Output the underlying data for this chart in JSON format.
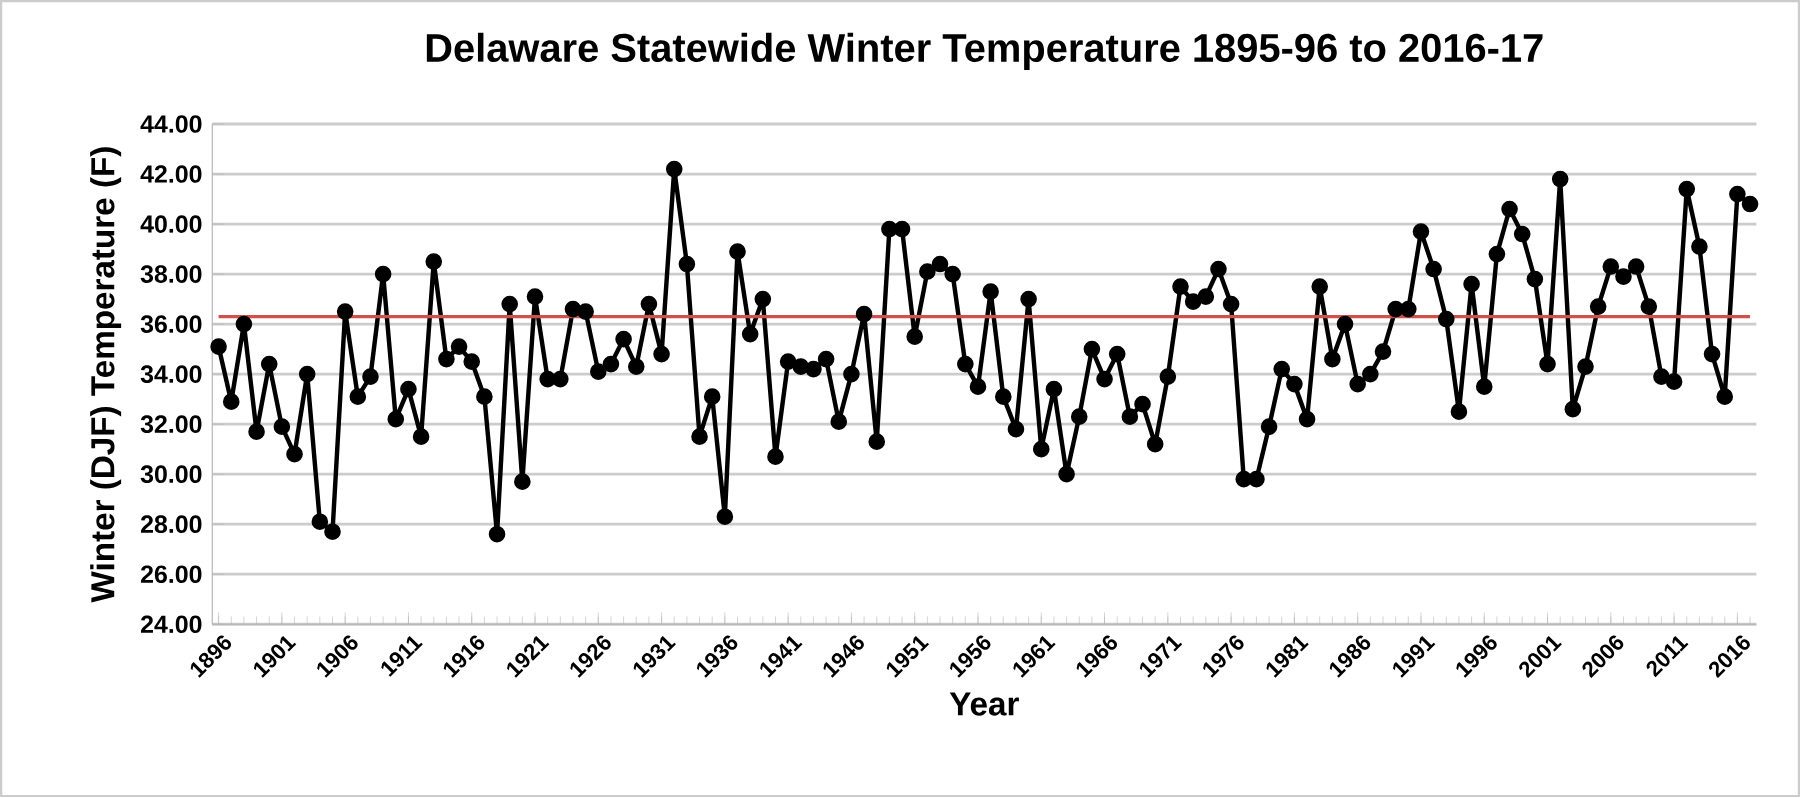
{
  "chart_data": {
    "type": "line",
    "title": "Delaware Statewide Winter Temperature 1895-96  to 2016-17",
    "xlabel": "Year",
    "ylabel": "Winter (DJF) Temperature (F)",
    "categories": [
      "1896",
      null,
      null,
      null,
      null,
      "1901",
      null,
      null,
      null,
      null,
      "1906",
      null,
      null,
      null,
      null,
      "1911",
      null,
      null,
      null,
      null,
      "1916",
      null,
      null,
      null,
      null,
      "1921",
      null,
      null,
      null,
      null,
      "1926",
      null,
      null,
      null,
      null,
      "1931",
      null,
      null,
      null,
      null,
      "1936",
      null,
      null,
      null,
      null,
      "1941",
      null,
      null,
      null,
      null,
      "1946",
      null,
      null,
      null,
      null,
      "1951",
      null,
      null,
      null,
      null,
      "1956",
      null,
      null,
      null,
      null,
      "1961",
      null,
      null,
      null,
      null,
      "1966",
      null,
      null,
      null,
      null,
      "1971",
      null,
      null,
      null,
      null,
      "1976",
      null,
      null,
      null,
      null,
      "1981",
      null,
      null,
      null,
      null,
      "1986",
      null,
      null,
      null,
      null,
      "1991",
      null,
      null,
      null,
      null,
      "1996",
      null,
      null,
      null,
      null,
      "2001",
      null,
      null,
      null,
      null,
      "2006",
      null,
      null,
      null,
      null,
      "2011",
      null,
      null,
      null,
      null,
      "2016",
      null
    ],
    "series": [
      {
        "color": "#000000",
        "values": [
          35.1,
          32.9,
          36.0,
          31.7,
          34.4,
          31.9,
          30.8,
          34.0,
          28.1,
          27.7,
          36.5,
          33.1,
          33.9,
          38.0,
          32.2,
          33.4,
          31.5,
          38.5,
          34.6,
          35.1,
          34.5,
          33.1,
          27.6,
          36.8,
          29.7,
          37.1,
          33.8,
          33.8,
          36.6,
          36.5,
          34.1,
          34.4,
          35.4,
          34.3,
          36.8,
          34.8,
          42.2,
          38.4,
          31.5,
          33.1,
          28.3,
          38.9,
          35.6,
          37.0,
          30.7,
          34.5,
          34.3,
          34.2,
          34.6,
          32.1,
          34.0,
          36.4,
          31.3,
          39.8,
          39.8,
          35.5,
          38.1,
          38.4,
          38.0,
          34.4,
          33.5,
          37.3,
          33.1,
          31.8,
          37.0,
          31.0,
          33.4,
          30.0,
          32.3,
          35.0,
          33.8,
          34.8,
          32.3,
          32.8,
          31.2,
          33.9,
          37.5,
          36.9,
          37.1,
          38.2,
          36.8,
          29.8,
          29.8,
          31.9,
          34.2,
          33.6,
          32.2,
          37.5,
          34.6,
          36.0,
          33.6,
          34.0,
          34.9,
          36.6,
          36.6,
          39.7,
          38.2,
          36.2,
          32.5,
          37.6,
          33.5,
          38.8,
          40.6,
          39.6,
          37.8,
          34.4,
          41.8,
          32.6,
          34.3,
          36.7,
          38.3,
          37.9,
          38.3,
          36.7,
          33.9,
          33.7,
          41.4,
          39.1,
          34.8,
          33.1,
          41.2,
          40.8
        ]
      }
    ],
    "ylim": [
      24,
      44
    ],
    "yticks": [
      {
        "value": 24,
        "label": "24.00"
      },
      {
        "value": 26,
        "label": "26.00"
      },
      {
        "value": 28,
        "label": "28.00"
      },
      {
        "value": 30,
        "label": "30.00"
      },
      {
        "value": 32,
        "label": "32.00"
      },
      {
        "value": 34,
        "label": "34.00"
      },
      {
        "value": 36,
        "label": "36.00"
      },
      {
        "value": 38,
        "label": "38.00"
      },
      {
        "value": 40,
        "label": "40.00"
      },
      {
        "value": 42,
        "label": "42.00"
      },
      {
        "value": 44,
        "label": "44.00"
      }
    ],
    "ref_lines": [
      {
        "axis": "y",
        "value": 36.3,
        "color": "#d0504a"
      }
    ],
    "grid": "y",
    "marker": "circle",
    "line_style": "solid"
  }
}
